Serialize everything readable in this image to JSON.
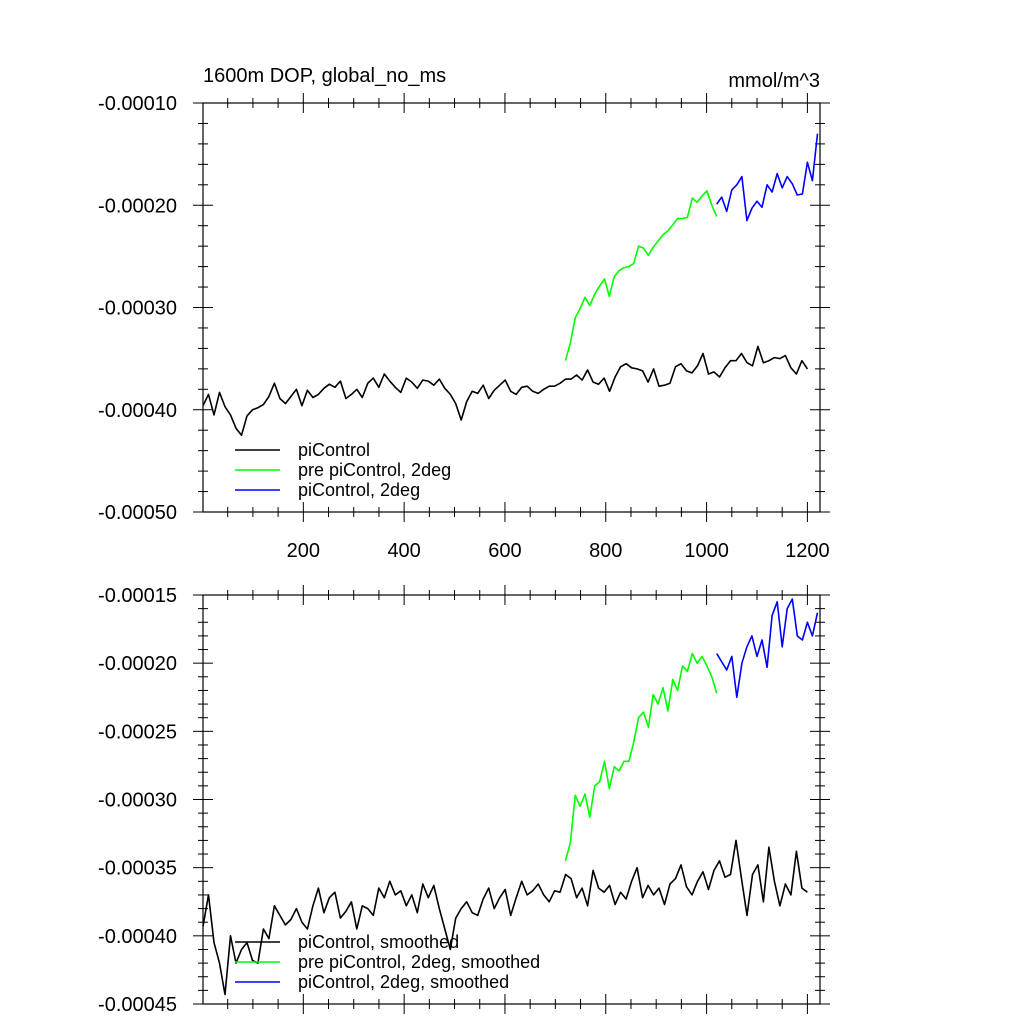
{
  "chart_data": [
    {
      "type": "line",
      "title": "1600m DOP, global_no_ms",
      "units": "mmol/m^3",
      "xlim": [
        1,
        1225
      ],
      "ylim": [
        -0.0005,
        -0.0001
      ],
      "xticks": [
        200,
        400,
        600,
        800,
        1000,
        1200
      ],
      "xtick_labels": [
        "200",
        "400",
        "600",
        "800",
        "1000",
        "1200"
      ],
      "yticks": [
        -0.0001,
        -0.0002,
        -0.0003,
        -0.0004,
        -0.0005
      ],
      "ytick_labels": [
        "-0.00010",
        "-0.00020",
        "-0.00030",
        "-0.00040",
        "-0.00050"
      ],
      "legend_placement": "lower-left",
      "series": [
        {
          "name": "piControl",
          "color": "#000000",
          "x_start": 1,
          "x_end": 1200,
          "values": [
            -0.000396,
            -0.000385,
            -0.000405,
            -0.000383,
            -0.000397,
            -0.000405,
            -0.000418,
            -0.000425,
            -0.000406,
            -0.0004,
            -0.000398,
            -0.000395,
            -0.000387,
            -0.000374,
            -0.000389,
            -0.000394,
            -0.000387,
            -0.00038,
            -0.000396,
            -0.000381,
            -0.000388,
            -0.000385,
            -0.000379,
            -0.000375,
            -0.000378,
            -0.000372,
            -0.000389,
            -0.000385,
            -0.00038,
            -0.000388,
            -0.000374,
            -0.000369,
            -0.000378,
            -0.000365,
            -0.000372,
            -0.000378,
            -0.000383,
            -0.000369,
            -0.000373,
            -0.000379,
            -0.000371,
            -0.000372,
            -0.000376,
            -0.00037,
            -0.000379,
            -0.000385,
            -0.000394,
            -0.00041,
            -0.000392,
            -0.000382,
            -0.000384,
            -0.000376,
            -0.000389,
            -0.000381,
            -0.000376,
            -0.000371,
            -0.000382,
            -0.000385,
            -0.000378,
            -0.000377,
            -0.000382,
            -0.000384,
            -0.00038,
            -0.000377,
            -0.000377,
            -0.000374,
            -0.00037,
            -0.00037,
            -0.000366,
            -0.000371,
            -0.000361,
            -0.000373,
            -0.000375,
            -0.000369,
            -0.000382,
            -0.000368,
            -0.000358,
            -0.000355,
            -0.000359,
            -0.00036,
            -0.000362,
            -0.000373,
            -0.00036,
            -0.000377,
            -0.000376,
            -0.000374,
            -0.000358,
            -0.000355,
            -0.000362,
            -0.000364,
            -0.000357,
            -0.000345,
            -0.000365,
            -0.000363,
            -0.000368,
            -0.000359,
            -0.000352,
            -0.000352,
            -0.000345,
            -0.000354,
            -0.000357,
            -0.000338,
            -0.000354,
            -0.000352,
            -0.000349,
            -0.00035,
            -0.000347,
            -0.000359,
            -0.000365,
            -0.000352,
            -0.00036
          ]
        },
        {
          "name": "pre piControl, 2deg",
          "color": "#00ff00",
          "x_start": 720,
          "x_end": 1020,
          "values": [
            -0.000352,
            -0.000335,
            -0.00031,
            -0.000301,
            -0.00029,
            -0.000298,
            -0.000287,
            -0.000279,
            -0.000272,
            -0.000289,
            -0.00027,
            -0.000264,
            -0.000261,
            -0.00026,
            -0.000257,
            -0.00024,
            -0.000242,
            -0.000249,
            -0.000241,
            -0.000235,
            -0.000229,
            -0.000225,
            -0.000219,
            -0.000213,
            -0.000213,
            -0.000212,
            -0.000193,
            -0.000197,
            -0.000191,
            -0.000186,
            -0.0002,
            -0.000211
          ]
        },
        {
          "name": "piControl, 2deg",
          "color": "#0000ff",
          "x_start": 1020,
          "x_end": 1220,
          "values": [
            -0.000199,
            -0.000192,
            -0.000206,
            -0.000185,
            -0.00018,
            -0.000172,
            -0.000215,
            -0.000203,
            -0.000196,
            -0.000202,
            -0.00018,
            -0.000187,
            -0.000169,
            -0.000183,
            -0.000172,
            -0.000179,
            -0.00019,
            -0.000189,
            -0.000158,
            -0.000176,
            -0.00013
          ]
        }
      ]
    },
    {
      "type": "line",
      "xlim": [
        1,
        1225
      ],
      "ylim": [
        -0.00045,
        -0.00015
      ],
      "xticks": [
        200,
        400,
        600,
        800,
        1000,
        1200
      ],
      "yticks": [
        -0.00015,
        -0.0002,
        -0.00025,
        -0.0003,
        -0.00035,
        -0.0004,
        -0.00045
      ],
      "ytick_labels": [
        "-0.00015",
        "-0.00020",
        "-0.00025",
        "-0.00030",
        "-0.00035",
        "-0.00040",
        "-0.00045"
      ],
      "legend_placement": "lower-left",
      "series": [
        {
          "name": "piControl, smoothed",
          "color": "#000000",
          "x_start": 1,
          "x_end": 1200,
          "values": [
            -0.000393,
            -0.00037,
            -0.000405,
            -0.00042,
            -0.000443,
            -0.0004,
            -0.00042,
            -0.00041,
            -0.000405,
            -0.000418,
            -0.00042,
            -0.000395,
            -0.000402,
            -0.000378,
            -0.000385,
            -0.000392,
            -0.000388,
            -0.00038,
            -0.00039,
            -0.000395,
            -0.000378,
            -0.000365,
            -0.000383,
            -0.000372,
            -0.000368,
            -0.000387,
            -0.000382,
            -0.000375,
            -0.000395,
            -0.000378,
            -0.00038,
            -0.000385,
            -0.000365,
            -0.000372,
            -0.00036,
            -0.00037,
            -0.000367,
            -0.000378,
            -0.00037,
            -0.000383,
            -0.000362,
            -0.000372,
            -0.000363,
            -0.00038,
            -0.000395,
            -0.00041,
            -0.000387,
            -0.00038,
            -0.000375,
            -0.000383,
            -0.000385,
            -0.000373,
            -0.000365,
            -0.00038,
            -0.000372,
            -0.000366,
            -0.000385,
            -0.000372,
            -0.00036,
            -0.00037,
            -0.000367,
            -0.000362,
            -0.00037,
            -0.000375,
            -0.000367,
            -0.000368,
            -0.000355,
            -0.000358,
            -0.000372,
            -0.000365,
            -0.000378,
            -0.000352,
            -0.000365,
            -0.000368,
            -0.000363,
            -0.000377,
            -0.000368,
            -0.000373,
            -0.00036,
            -0.00035,
            -0.000372,
            -0.000363,
            -0.00037,
            -0.000365,
            -0.000377,
            -0.000362,
            -0.000358,
            -0.000348,
            -0.000364,
            -0.00037,
            -0.00036,
            -0.000353,
            -0.000366,
            -0.000352,
            -0.000345,
            -0.000357,
            -0.000355,
            -0.00033,
            -0.000358,
            -0.000385,
            -0.000355,
            -0.000348,
            -0.000375,
            -0.000335,
            -0.00036,
            -0.000378,
            -0.000362,
            -0.00037,
            -0.000338,
            -0.000365,
            -0.000368
          ]
        },
        {
          "name": "pre piControl, 2deg, smoothed",
          "color": "#00ff00",
          "x_start": 720,
          "x_end": 1020,
          "values": [
            -0.000345,
            -0.000332,
            -0.000297,
            -0.000305,
            -0.000296,
            -0.000313,
            -0.00029,
            -0.000287,
            -0.000272,
            -0.000292,
            -0.000276,
            -0.000279,
            -0.000272,
            -0.000272,
            -0.000258,
            -0.00024,
            -0.000236,
            -0.000247,
            -0.000223,
            -0.00023,
            -0.000218,
            -0.000235,
            -0.000212,
            -0.00022,
            -0.000202,
            -0.000206,
            -0.000193,
            -0.0002,
            -0.000195,
            -0.000202,
            -0.00021,
            -0.000222
          ]
        },
        {
          "name": "piControl, 2deg, smoothed",
          "color": "#0000ff",
          "x_start": 1020,
          "x_end": 1220,
          "values": [
            -0.000193,
            -0.000199,
            -0.000205,
            -0.000195,
            -0.000225,
            -0.0002,
            -0.000188,
            -0.00018,
            -0.000195,
            -0.000183,
            -0.000203,
            -0.000165,
            -0.000155,
            -0.000188,
            -0.00016,
            -0.000153,
            -0.00018,
            -0.000183,
            -0.00017,
            -0.00018,
            -0.000163
          ]
        }
      ]
    }
  ]
}
